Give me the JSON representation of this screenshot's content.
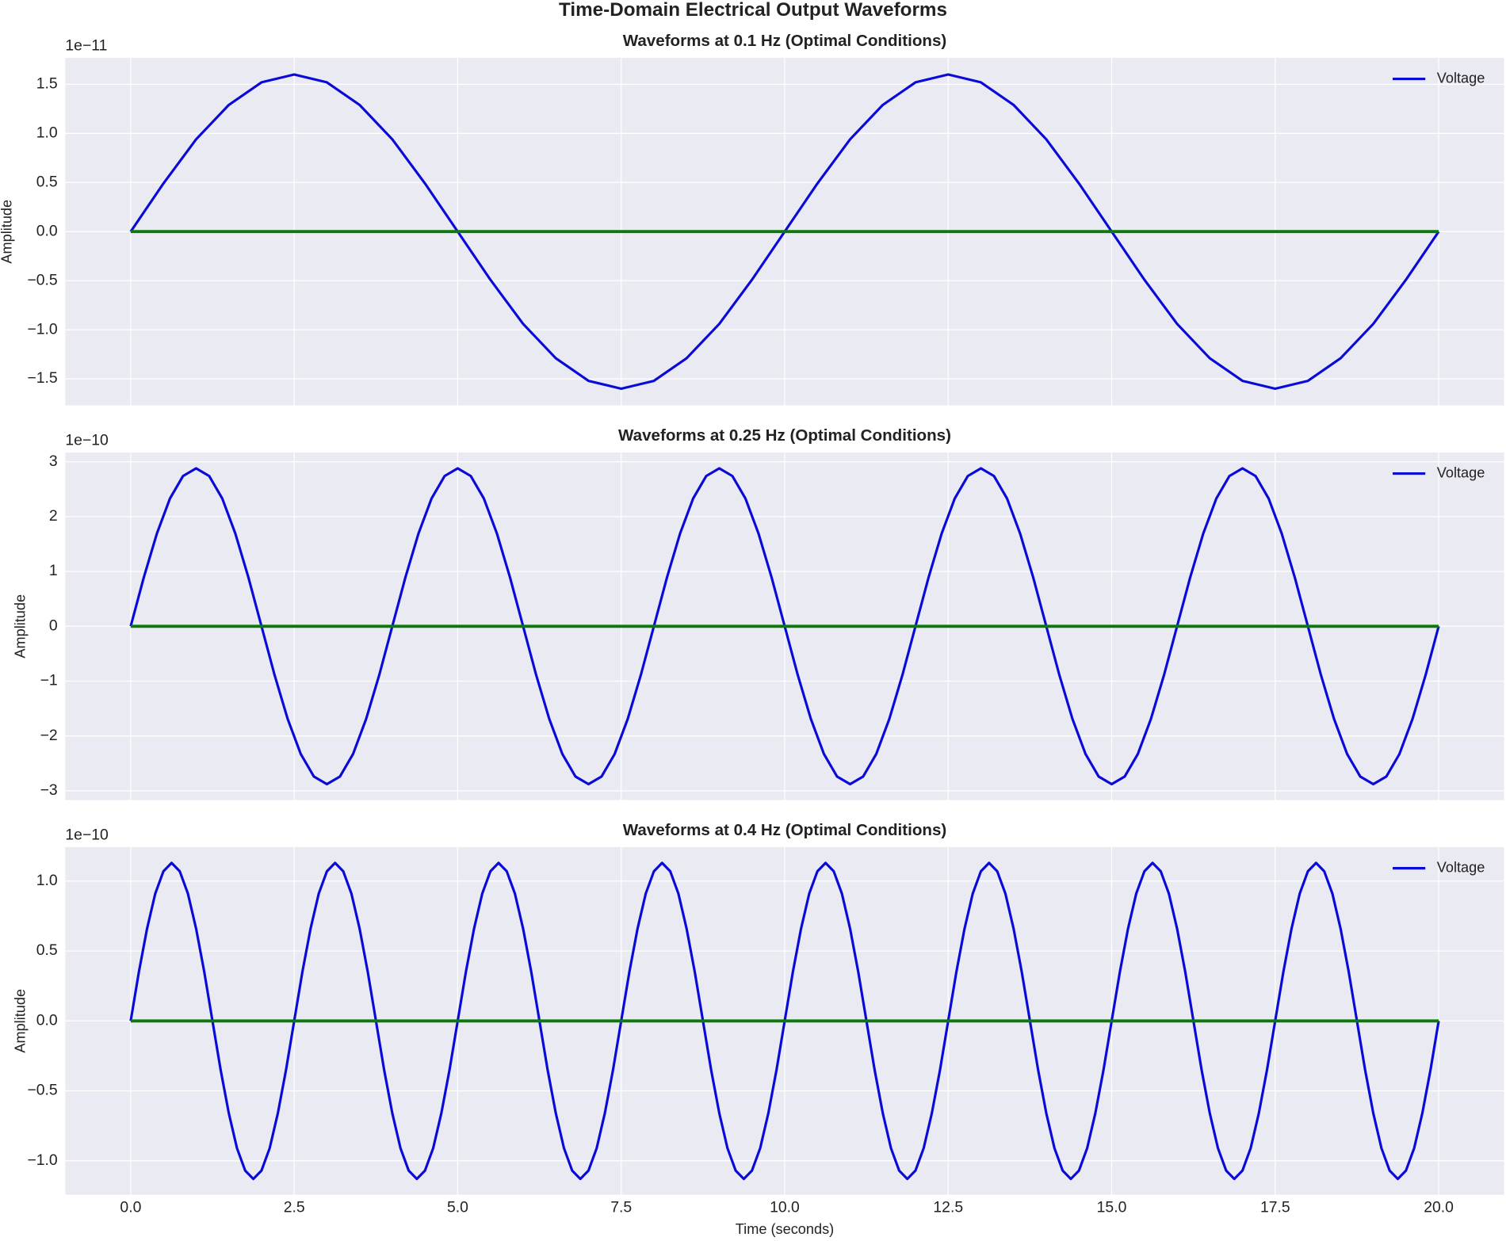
{
  "title": "Time-Domain Electrical Output Waveforms",
  "chart_data": [
    {
      "type": "line",
      "title": "Waveforms at 0.1 Hz (Optimal Conditions)",
      "ylabel": "Amplitude",
      "y_offset_label": "1e−11",
      "x": [
        0,
        0.5,
        1,
        1.5,
        2,
        2.5,
        3,
        3.5,
        4,
        4.5,
        5,
        5.5,
        6,
        6.5,
        7,
        7.5,
        8,
        8.5,
        9,
        9.5,
        10,
        10.5,
        11,
        11.5,
        12,
        12.5,
        13,
        13.5,
        14,
        14.5,
        15,
        15.5,
        16,
        16.5,
        17,
        17.5,
        18,
        18.5,
        19,
        19.5,
        20
      ],
      "series": [
        {
          "name": "Voltage",
          "color": "#0a0ad8",
          "values": [
            0,
            0.49,
            0.94,
            1.29,
            1.52,
            1.6,
            1.52,
            1.29,
            0.94,
            0.49,
            0,
            -0.49,
            -0.94,
            -1.29,
            -1.52,
            -1.6,
            -1.52,
            -1.29,
            -0.94,
            -0.49,
            0,
            0.49,
            0.94,
            1.29,
            1.52,
            1.6,
            1.52,
            1.29,
            0.94,
            0.49,
            0,
            -0.49,
            -0.94,
            -1.29,
            -1.52,
            -1.6,
            -1.52,
            -1.29,
            -0.94,
            -0.49,
            0
          ]
        },
        {
          "color": "#0b7a0b",
          "values": [
            0,
            0,
            0,
            0,
            0,
            0,
            0,
            0,
            0,
            0,
            0,
            0,
            0,
            0,
            0,
            0,
            0,
            0,
            0,
            0,
            0,
            0,
            0,
            0,
            0,
            0,
            0,
            0,
            0,
            0,
            0,
            0,
            0,
            0,
            0,
            0,
            0,
            0,
            0,
            0,
            0
          ]
        }
      ],
      "xlim": [
        -1,
        21
      ],
      "ylim": [
        -1.77,
        1.77
      ],
      "xticks": [
        0,
        2.5,
        5,
        7.5,
        10,
        12.5,
        15,
        17.5,
        20
      ],
      "yticks": [
        {
          "value": -1.5,
          "label": "−1.5"
        },
        {
          "value": -1,
          "label": "−1.0"
        },
        {
          "value": -0.5,
          "label": "−0.5"
        },
        {
          "value": 0,
          "label": "0.0"
        },
        0.5,
        {
          "value": 1,
          "label": "1.0"
        },
        1.5
      ],
      "grid": true,
      "legend": "upper right"
    },
    {
      "type": "line",
      "title": "Waveforms at 0.25 Hz (Optimal Conditions)",
      "ylabel": "Amplitude",
      "y_offset_label": "1e−10",
      "x": [
        0,
        0.2,
        0.4,
        0.6,
        0.8,
        1,
        1.2,
        1.4,
        1.6,
        1.8,
        2,
        2.2,
        2.4,
        2.6,
        2.8,
        3,
        3.2,
        3.4,
        3.6,
        3.8,
        4,
        4.2,
        4.4,
        4.6,
        4.8,
        5,
        5.2,
        5.4,
        5.6,
        5.8,
        6,
        6.2,
        6.4,
        6.6,
        6.8,
        7,
        7.2,
        7.4,
        7.6,
        7.8,
        8,
        8.2,
        8.4,
        8.6,
        8.8,
        9,
        9.2,
        9.4,
        9.6,
        9.8,
        10,
        10.2,
        10.4,
        10.6,
        10.8,
        11,
        11.2,
        11.4,
        11.6,
        11.8,
        12,
        12.2,
        12.4,
        12.6,
        12.8,
        13,
        13.2,
        13.4,
        13.6,
        13.8,
        14,
        14.2,
        14.4,
        14.6,
        14.8,
        15,
        15.2,
        15.4,
        15.6,
        15.8,
        16,
        16.2,
        16.4,
        16.6,
        16.8,
        17,
        17.2,
        17.4,
        17.6,
        17.8,
        18,
        18.2,
        18.4,
        18.6,
        18.8,
        19,
        19.2,
        19.4,
        19.6,
        19.8,
        20
      ],
      "series": [
        {
          "name": "Voltage",
          "color": "#0a0ad8",
          "values": [
            0,
            0.89,
            1.69,
            2.33,
            2.74,
            2.88,
            2.74,
            2.33,
            1.69,
            0.89,
            0,
            -0.89,
            -1.69,
            -2.33,
            -2.74,
            -2.88,
            -2.74,
            -2.33,
            -1.69,
            -0.89,
            0,
            0.89,
            1.69,
            2.33,
            2.74,
            2.88,
            2.74,
            2.33,
            1.69,
            0.89,
            0,
            -0.89,
            -1.69,
            -2.33,
            -2.74,
            -2.88,
            -2.74,
            -2.33,
            -1.69,
            -0.89,
            0,
            0.89,
            1.69,
            2.33,
            2.74,
            2.88,
            2.74,
            2.33,
            1.69,
            0.89,
            0,
            -0.89,
            -1.69,
            -2.33,
            -2.74,
            -2.88,
            -2.74,
            -2.33,
            -1.69,
            -0.89,
            0,
            0.89,
            1.69,
            2.33,
            2.74,
            2.88,
            2.74,
            2.33,
            1.69,
            0.89,
            0,
            -0.89,
            -1.69,
            -2.33,
            -2.74,
            -2.88,
            -2.74,
            -2.33,
            -1.69,
            -0.89,
            0,
            0.89,
            1.69,
            2.33,
            2.74,
            2.88,
            2.74,
            2.33,
            1.69,
            0.89,
            0,
            -0.89,
            -1.69,
            -2.33,
            -2.74,
            -2.88,
            -2.74,
            -2.33,
            -1.69,
            -0.89,
            0
          ]
        },
        {
          "color": "#0b7a0b",
          "values": [
            0,
            0,
            0,
            0,
            0,
            0,
            0,
            0,
            0,
            0,
            0,
            0,
            0,
            0,
            0,
            0,
            0,
            0,
            0,
            0,
            0,
            0,
            0,
            0,
            0,
            0,
            0,
            0,
            0,
            0,
            0,
            0,
            0,
            0,
            0,
            0,
            0,
            0,
            0,
            0,
            0,
            0,
            0,
            0,
            0,
            0,
            0,
            0,
            0,
            0,
            0,
            0,
            0,
            0,
            0,
            0,
            0,
            0,
            0,
            0,
            0,
            0,
            0,
            0,
            0,
            0,
            0,
            0,
            0,
            0,
            0,
            0,
            0,
            0,
            0,
            0,
            0,
            0,
            0,
            0,
            0,
            0,
            0,
            0,
            0,
            0,
            0,
            0,
            0,
            0,
            0,
            0,
            0,
            0,
            0,
            0,
            0,
            0,
            0,
            0,
            0
          ]
        }
      ],
      "xlim": [
        -1,
        21
      ],
      "ylim": [
        -3.17,
        3.17
      ],
      "xticks": [
        0,
        2.5,
        5,
        7.5,
        10,
        12.5,
        15,
        17.5,
        20
      ],
      "yticks": [
        {
          "value": -3,
          "label": "−3"
        },
        {
          "value": -2,
          "label": "−2"
        },
        {
          "value": -1,
          "label": "−1"
        },
        0,
        1,
        2,
        3
      ],
      "grid": true,
      "legend": "upper right"
    },
    {
      "type": "line",
      "title": "Waveforms at 0.4 Hz (Optimal Conditions)",
      "ylabel": "Amplitude",
      "xlabel": "Time (seconds)",
      "y_offset_label": "1e−10",
      "x": [
        0,
        0.125,
        0.25,
        0.375,
        0.5,
        0.625,
        0.75,
        0.875,
        1,
        1.125,
        1.25,
        1.375,
        1.5,
        1.625,
        1.75,
        1.875,
        2,
        2.125,
        2.25,
        2.375,
        2.5,
        2.625,
        2.75,
        2.875,
        3,
        3.125,
        3.25,
        3.375,
        3.5,
        3.625,
        3.75,
        3.875,
        4,
        4.125,
        4.25,
        4.375,
        4.5,
        4.625,
        4.75,
        4.875,
        5,
        5.125,
        5.25,
        5.375,
        5.5,
        5.625,
        5.75,
        5.875,
        6,
        6.125,
        6.25,
        6.375,
        6.5,
        6.625,
        6.75,
        6.875,
        7,
        7.125,
        7.25,
        7.375,
        7.5,
        7.625,
        7.75,
        7.875,
        8,
        8.125,
        8.25,
        8.375,
        8.5,
        8.625,
        8.75,
        8.875,
        9,
        9.125,
        9.25,
        9.375,
        9.5,
        9.625,
        9.75,
        9.875,
        10,
        10.125,
        10.25,
        10.375,
        10.5,
        10.625,
        10.75,
        10.875,
        11,
        11.125,
        11.25,
        11.375,
        11.5,
        11.625,
        11.75,
        11.875,
        12,
        12.125,
        12.25,
        12.375,
        12.5,
        12.625,
        12.75,
        12.875,
        13,
        13.125,
        13.25,
        13.375,
        13.5,
        13.625,
        13.75,
        13.875,
        14,
        14.125,
        14.25,
        14.375,
        14.5,
        14.625,
        14.75,
        14.875,
        15,
        15.125,
        15.25,
        15.375,
        15.5,
        15.625,
        15.75,
        15.875,
        16,
        16.125,
        16.25,
        16.375,
        16.5,
        16.625,
        16.75,
        16.875,
        17,
        17.125,
        17.25,
        17.375,
        17.5,
        17.625,
        17.75,
        17.875,
        18,
        18.125,
        18.25,
        18.375,
        18.5,
        18.625,
        18.75,
        18.875,
        19,
        19.125,
        19.25,
        19.375,
        19.5,
        19.625,
        19.75,
        19.875,
        20
      ],
      "series": [
        {
          "name": "Voltage",
          "color": "#0a0ad8",
          "values": [
            0,
            0.35,
            0.66,
            0.91,
            1.07,
            1.13,
            1.07,
            0.91,
            0.66,
            0.35,
            0,
            -0.35,
            -0.66,
            -0.91,
            -1.07,
            -1.13,
            -1.07,
            -0.91,
            -0.66,
            -0.35,
            0,
            0.35,
            0.66,
            0.91,
            1.07,
            1.13,
            1.07,
            0.91,
            0.66,
            0.35,
            0,
            -0.35,
            -0.66,
            -0.91,
            -1.07,
            -1.13,
            -1.07,
            -0.91,
            -0.66,
            -0.35,
            0,
            0.35,
            0.66,
            0.91,
            1.07,
            1.13,
            1.07,
            0.91,
            0.66,
            0.35,
            0,
            -0.35,
            -0.66,
            -0.91,
            -1.07,
            -1.13,
            -1.07,
            -0.91,
            -0.66,
            -0.35,
            0,
            0.35,
            0.66,
            0.91,
            1.07,
            1.13,
            1.07,
            0.91,
            0.66,
            0.35,
            0,
            -0.35,
            -0.66,
            -0.91,
            -1.07,
            -1.13,
            -1.07,
            -0.91,
            -0.66,
            -0.35,
            0,
            0.35,
            0.66,
            0.91,
            1.07,
            1.13,
            1.07,
            0.91,
            0.66,
            0.35,
            0,
            -0.35,
            -0.66,
            -0.91,
            -1.07,
            -1.13,
            -1.07,
            -0.91,
            -0.66,
            -0.35,
            0,
            0.35,
            0.66,
            0.91,
            1.07,
            1.13,
            1.07,
            0.91,
            0.66,
            0.35,
            0,
            -0.35,
            -0.66,
            -0.91,
            -1.07,
            -1.13,
            -1.07,
            -0.91,
            -0.66,
            -0.35,
            0,
            0.35,
            0.66,
            0.91,
            1.07,
            1.13,
            1.07,
            0.91,
            0.66,
            0.35,
            0,
            -0.35,
            -0.66,
            -0.91,
            -1.07,
            -1.13,
            -1.07,
            -0.91,
            -0.66,
            -0.35,
            0,
            0.35,
            0.66,
            0.91,
            1.07,
            1.13,
            1.07,
            0.91,
            0.66,
            0.35,
            0,
            -0.35,
            -0.66,
            -0.91,
            -1.07,
            -1.13,
            -1.07,
            -0.91,
            -0.66,
            -0.35,
            0
          ]
        },
        {
          "color": "#0b7a0b",
          "values": [
            0,
            0,
            0,
            0,
            0,
            0,
            0,
            0,
            0,
            0,
            0,
            0,
            0,
            0,
            0,
            0,
            0,
            0,
            0,
            0,
            0,
            0,
            0,
            0,
            0,
            0,
            0,
            0,
            0,
            0,
            0,
            0,
            0,
            0,
            0,
            0,
            0,
            0,
            0,
            0,
            0,
            0,
            0,
            0,
            0,
            0,
            0,
            0,
            0,
            0,
            0,
            0,
            0,
            0,
            0,
            0,
            0,
            0,
            0,
            0,
            0,
            0,
            0,
            0,
            0,
            0,
            0,
            0,
            0,
            0,
            0,
            0,
            0,
            0,
            0,
            0,
            0,
            0,
            0,
            0,
            0,
            0,
            0,
            0,
            0,
            0,
            0,
            0,
            0,
            0,
            0,
            0,
            0,
            0,
            0,
            0,
            0,
            0,
            0,
            0,
            0,
            0,
            0,
            0,
            0,
            0,
            0,
            0,
            0,
            0,
            0,
            0,
            0,
            0,
            0,
            0,
            0,
            0,
            0,
            0,
            0,
            0,
            0,
            0,
            0,
            0,
            0,
            0,
            0,
            0,
            0,
            0,
            0,
            0,
            0,
            0,
            0,
            0,
            0,
            0,
            0,
            0,
            0,
            0,
            0,
            0,
            0,
            0,
            0,
            0,
            0,
            0,
            0,
            0,
            0,
            0,
            0,
            0,
            0,
            0,
            0
          ]
        }
      ],
      "xlim": [
        -1,
        21
      ],
      "ylim": [
        -1.243,
        1.243
      ],
      "xticks": [
        {
          "value": 0,
          "label": "0.0"
        },
        2.5,
        {
          "value": 5,
          "label": "5.0"
        },
        7.5,
        {
          "value": 10,
          "label": "10.0"
        },
        12.5,
        {
          "value": 15,
          "label": "15.0"
        },
        17.5,
        {
          "value": 20,
          "label": "20.0"
        }
      ],
      "yticks": [
        {
          "value": -1,
          "label": "−1.0"
        },
        {
          "value": -0.5,
          "label": "−0.5"
        },
        {
          "value": 0,
          "label": "0.0"
        },
        0.5,
        {
          "value": 1,
          "label": "1.0"
        }
      ],
      "grid": true,
      "legend": "upper right"
    }
  ]
}
